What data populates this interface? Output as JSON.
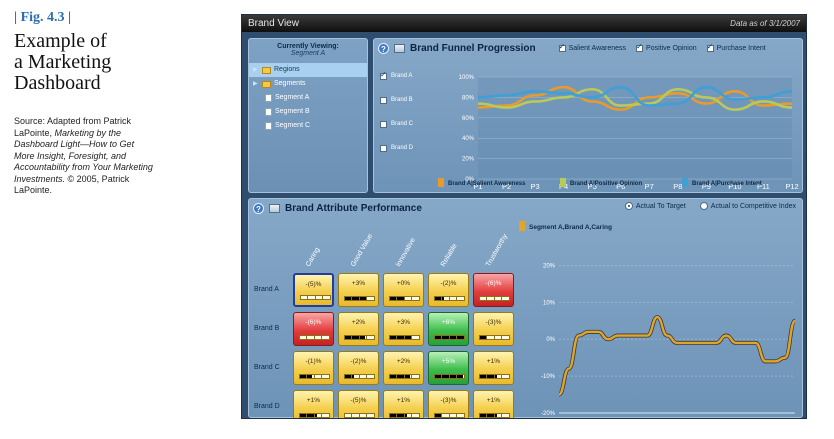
{
  "caption": {
    "fig_label": "| Fig. 4.3 |",
    "title_lines": [
      "Example of",
      "a Marketing",
      "Dashboard"
    ],
    "source_prefix": "Source: Adapted from Patrick LaPointe, ",
    "source_italic": "Marketing by the Dashboard Light—How to Get More Insight, Foresight, and Accountability from Your Marketing Investments.",
    "source_suffix": " © 2005, Patrick LaPointe."
  },
  "window": {
    "title": "Brand View",
    "date": "Data as of 3/1/2007"
  },
  "nav": {
    "viewing_label": "Currently Viewing:",
    "viewing_value": "Segment A",
    "items": [
      {
        "label": "Regions",
        "type": "folder",
        "selected": true,
        "indent": 0
      },
      {
        "label": "Segments",
        "type": "folder",
        "selected": false,
        "indent": 0
      },
      {
        "label": "Segment A",
        "type": "doc",
        "selected": false,
        "indent": 1
      },
      {
        "label": "Segment B",
        "type": "doc",
        "selected": false,
        "indent": 1
      },
      {
        "label": "Segment C",
        "type": "doc",
        "selected": false,
        "indent": 1
      }
    ]
  },
  "funnel": {
    "title": "Brand Funnel Progression",
    "checks": [
      "Salient Awareness",
      "Positive Opinion",
      "Purchase Intent"
    ],
    "brands": [
      {
        "label": "Brand A",
        "checked": true
      },
      {
        "label": "Brand B",
        "checked": false
      },
      {
        "label": "Brand C",
        "checked": false
      },
      {
        "label": "Brand D",
        "checked": false
      }
    ]
  },
  "attr": {
    "title": "Brand Attribute Performance",
    "radios": [
      {
        "label": "Actual To Target",
        "on": true
      },
      {
        "label": "Actual to Competitive Index",
        "on": false
      }
    ],
    "columns": [
      "Caring",
      "Good Value",
      "Innovative",
      "Reliable",
      "Trustworthy"
    ],
    "rows": [
      {
        "label": "Brand A",
        "cells": [
          {
            "value": "-(5)%",
            "color": "yellow",
            "fill": 0.0,
            "selected": true
          },
          {
            "value": "+3%",
            "color": "yellow",
            "fill": 0.75
          },
          {
            "value": "+0%",
            "color": "yellow",
            "fill": 0.5
          },
          {
            "value": "-(2)%",
            "color": "yellow",
            "fill": 0.3
          },
          {
            "value": "-(6)%",
            "color": "red",
            "fill": 0.0
          }
        ]
      },
      {
        "label": "Brand B",
        "cells": [
          {
            "value": "-(6)%",
            "color": "red",
            "fill": 0.0
          },
          {
            "value": "+2%",
            "color": "yellow",
            "fill": 0.7
          },
          {
            "value": "+3%",
            "color": "yellow",
            "fill": 0.75
          },
          {
            "value": "+6%",
            "color": "green",
            "fill": 1.0
          },
          {
            "value": "-(3)%",
            "color": "yellow",
            "fill": 0.25
          }
        ]
      },
      {
        "label": "Brand C",
        "cells": [
          {
            "value": "-(1)%",
            "color": "yellow",
            "fill": 0.4
          },
          {
            "value": "-(2)%",
            "color": "yellow",
            "fill": 0.3
          },
          {
            "value": "+2%",
            "color": "yellow",
            "fill": 0.7
          },
          {
            "value": "+5%",
            "color": "green",
            "fill": 0.95
          },
          {
            "value": "+1%",
            "color": "yellow",
            "fill": 0.6
          }
        ]
      },
      {
        "label": "Brand D",
        "cells": [
          {
            "value": "+1%",
            "color": "yellow",
            "fill": 0.6
          },
          {
            "value": "-(5)%",
            "color": "yellow",
            "fill": 0.0
          },
          {
            "value": "+1%",
            "color": "yellow",
            "fill": 0.6
          },
          {
            "value": "-(3)%",
            "color": "yellow",
            "fill": 0.25
          },
          {
            "value": "+1%",
            "color": "yellow",
            "fill": 0.6
          }
        ]
      }
    ]
  },
  "chart_data": [
    {
      "type": "line",
      "x": [
        "P1",
        "P2",
        "P3",
        "P4",
        "P5",
        "P6",
        "P7",
        "P8",
        "P9",
        "P10",
        "P11",
        "P12"
      ],
      "ylim": [
        0,
        100
      ],
      "yticks": [
        "0%",
        "20%",
        "40%",
        "60%",
        "80%",
        "100%"
      ],
      "legend_position": "bottom",
      "series": [
        {
          "name": "Brand A|Salient Awareness",
          "color": "#e99a2c",
          "values": [
            70,
            72,
            82,
            90,
            76,
            68,
            80,
            84,
            74,
            86,
            72,
            74
          ]
        },
        {
          "name": "Brand A|Positive Opinion",
          "color": "#b9c95a",
          "values": [
            74,
            70,
            76,
            80,
            88,
            72,
            74,
            88,
            80,
            68,
            76,
            70
          ]
        },
        {
          "name": "Brand A|Purchase Intent",
          "color": "#3f9fd6",
          "values": [
            80,
            82,
            86,
            84,
            80,
            90,
            72,
            74,
            90,
            78,
            80,
            86
          ]
        }
      ]
    },
    {
      "type": "line",
      "title": "Segment A,Brand A,Caring",
      "ylim": [
        -20,
        25
      ],
      "yticks": [
        "-20%",
        "-10%",
        "0%",
        "10%",
        "20%"
      ],
      "x": [
        0,
        0.5,
        1,
        1.5,
        2,
        2.5,
        3,
        3.5,
        4,
        4.5,
        5,
        5.5,
        6,
        6.5,
        7,
        7.5,
        8,
        8.5,
        9,
        9.5,
        10,
        10.5,
        11,
        11.5,
        12
      ],
      "series": [
        {
          "name": "Segment A,Brand A,Caring",
          "color": "#e0a52a",
          "values": [
            -15,
            -8,
            1,
            2,
            2,
            0,
            1,
            1,
            1,
            1,
            6,
            1,
            -1,
            -1,
            -1,
            -1,
            -1,
            1,
            -1,
            -1,
            -1,
            -6,
            -6,
            -5,
            5
          ]
        }
      ]
    }
  ]
}
